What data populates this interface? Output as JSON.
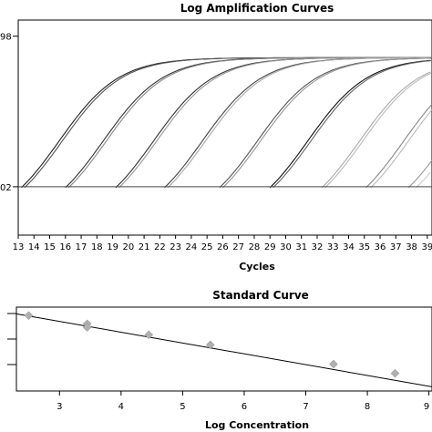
{
  "chart_data": [
    {
      "type": "line",
      "title": "Log Amplification Curves",
      "xlabel": "Cycles",
      "ylabel": "",
      "x_ticks": [
        13,
        14,
        15,
        16,
        17,
        18,
        19,
        20,
        21,
        22,
        23,
        24,
        25,
        26,
        27,
        28,
        29,
        30,
        31,
        32,
        33,
        34,
        35,
        36,
        37,
        38,
        39
      ],
      "xlim": [
        13,
        39.3
      ],
      "y_scale": "log",
      "y_tick_labels": [
        "98",
        "02"
      ],
      "ylim_log": [
        -0.45,
        1.55
      ],
      "threshold": {
        "y_log": 0.0
      },
      "grid": false,
      "series": [
        {
          "start": 13.2,
          "mid": 15.6,
          "color": "#222222"
        },
        {
          "start": 13.4,
          "mid": 15.8,
          "color": "#555555"
        },
        {
          "start": 16.0,
          "mid": 18.4,
          "color": "#333333"
        },
        {
          "start": 16.2,
          "mid": 18.6,
          "color": "#888888"
        },
        {
          "start": 19.2,
          "mid": 21.6,
          "color": "#333333"
        },
        {
          "start": 19.4,
          "mid": 21.8,
          "color": "#999999"
        },
        {
          "start": 22.3,
          "mid": 24.7,
          "color": "#444444"
        },
        {
          "start": 22.5,
          "mid": 24.9,
          "color": "#aaaaaa"
        },
        {
          "start": 25.8,
          "mid": 28.2,
          "color": "#555555"
        },
        {
          "start": 26.0,
          "mid": 28.4,
          "color": "#999999"
        },
        {
          "start": 29.0,
          "mid": 31.4,
          "color": "#111111"
        },
        {
          "start": 29.2,
          "mid": 31.6,
          "color": "#666666"
        },
        {
          "start": 32.3,
          "mid": 34.7,
          "color": "#aaaaaa"
        },
        {
          "start": 32.5,
          "mid": 34.9,
          "color": "#bbbbbb"
        },
        {
          "start": 35.1,
          "mid": 37.5,
          "color": "#888888"
        },
        {
          "start": 35.4,
          "mid": 37.8,
          "color": "#bbbbbb"
        },
        {
          "start": 37.8,
          "mid": 40.2,
          "color": "#999999"
        },
        {
          "start": 38.3,
          "mid": 40.7,
          "color": "#cccccc"
        }
      ]
    },
    {
      "type": "scatter",
      "title": "Standard Curve",
      "xlabel": "Log Concentration",
      "ylabel": "",
      "x_ticks": [
        3,
        4,
        5,
        6,
        7,
        8,
        9
      ],
      "xlim": [
        2.3,
        9.05
      ],
      "ylim": [
        0,
        1
      ],
      "points": [
        {
          "x": 2.5,
          "y": 0.9
        },
        {
          "x": 3.45,
          "y": 0.8
        },
        {
          "x": 3.45,
          "y": 0.76
        },
        {
          "x": 4.45,
          "y": 0.67
        },
        {
          "x": 5.45,
          "y": 0.55
        },
        {
          "x": 7.45,
          "y": 0.32
        },
        {
          "x": 8.45,
          "y": 0.21
        }
      ],
      "fit": {
        "x": [
          2.3,
          9.05
        ],
        "y": [
          0.92,
          0.05
        ]
      },
      "marker_color": "#b0b0b0",
      "line_color": "#000000"
    }
  ]
}
